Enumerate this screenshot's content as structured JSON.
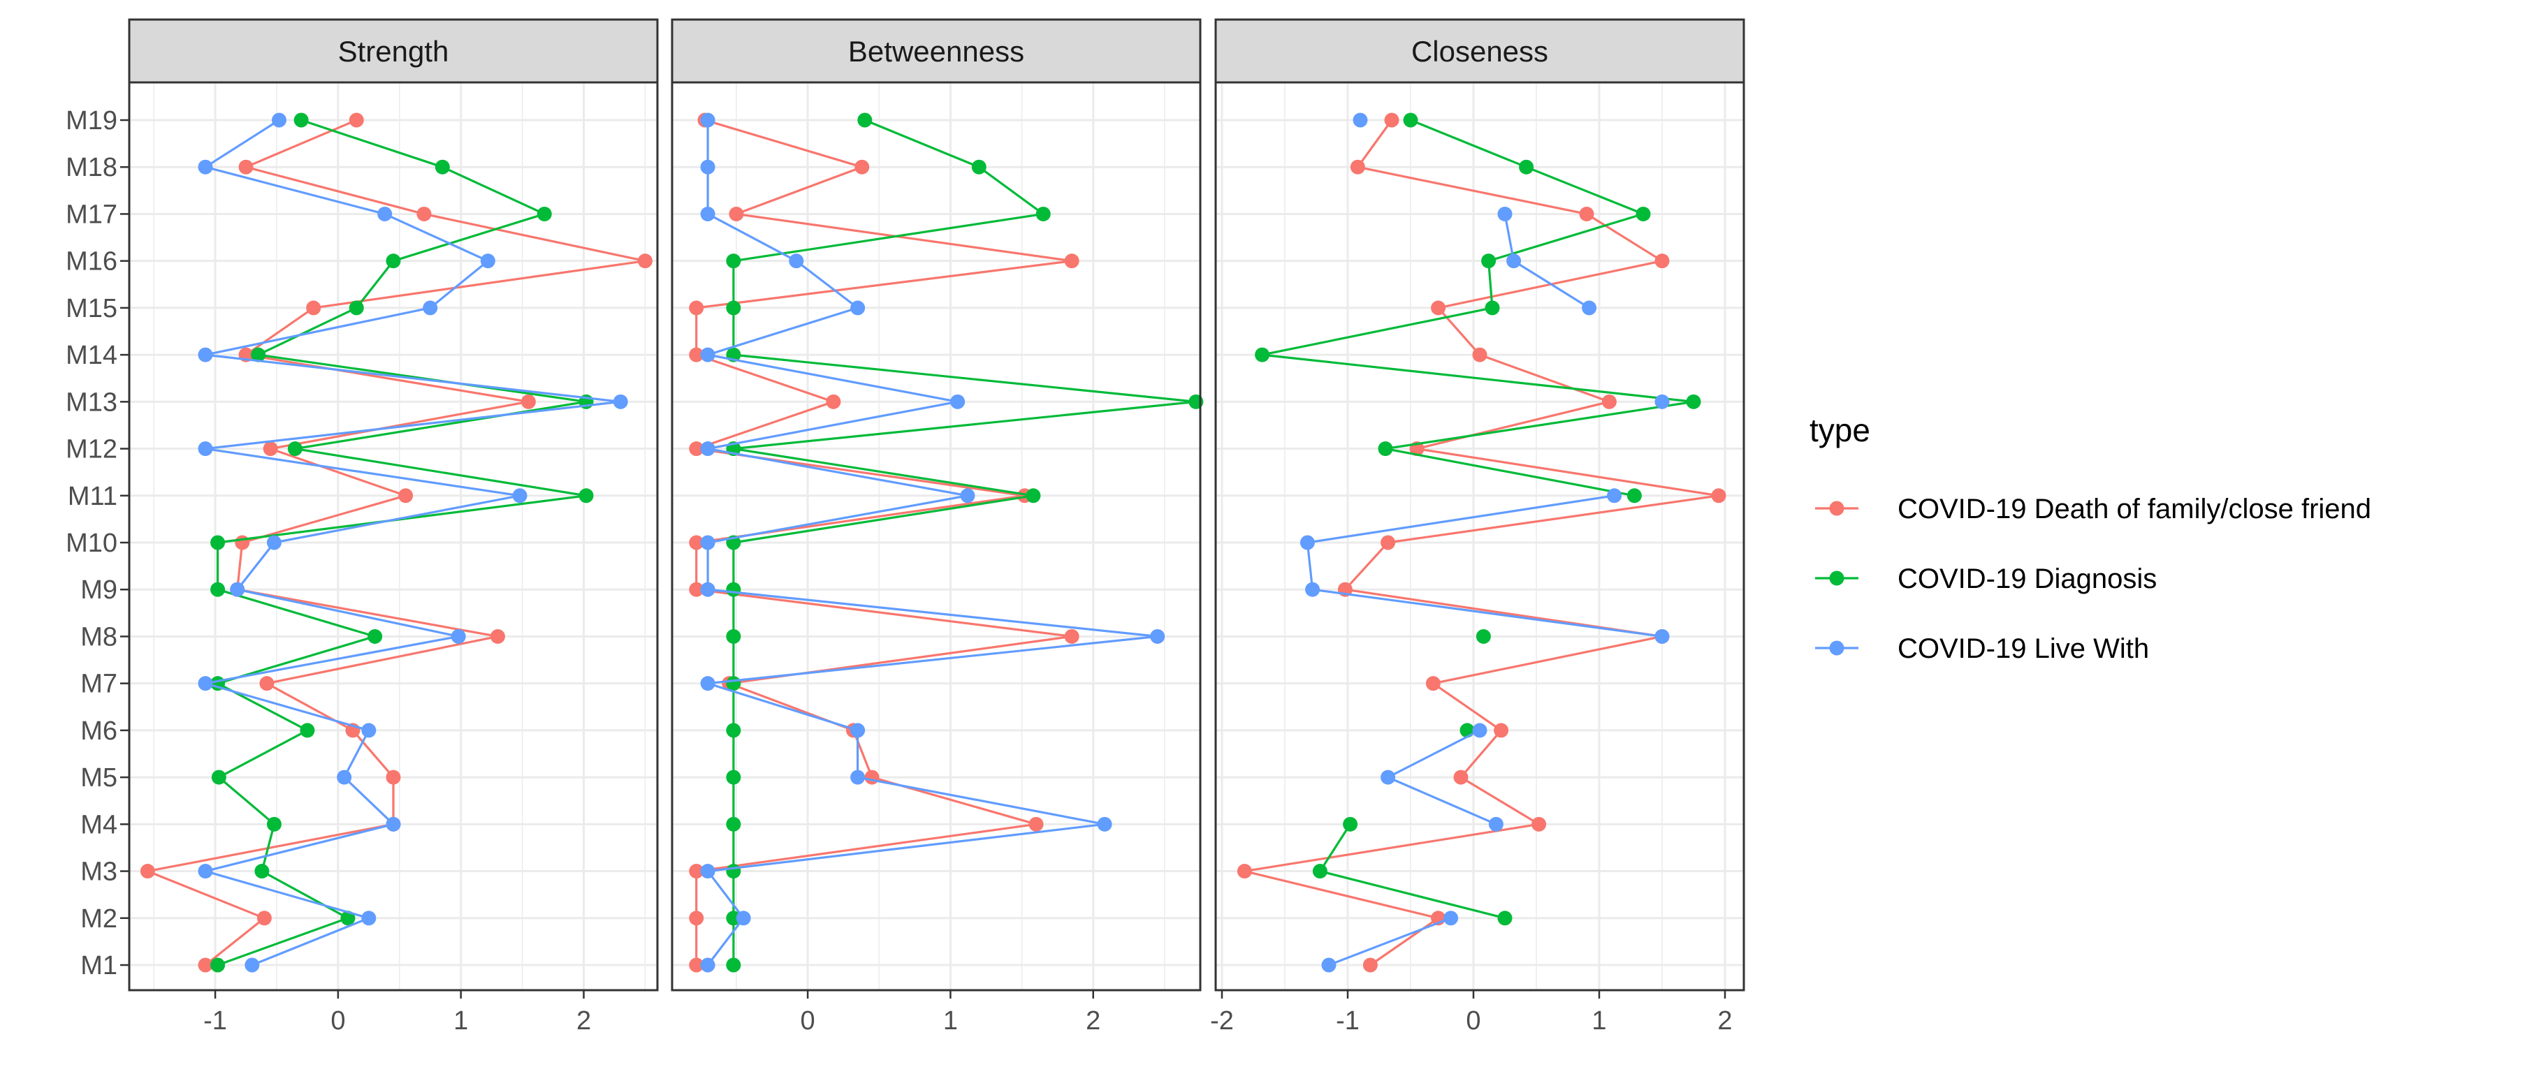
{
  "chart_data": {
    "type": "line",
    "orientation": "horizontal-profile",
    "categories": [
      "M1",
      "M2",
      "M3",
      "M4",
      "M5",
      "M6",
      "M7",
      "M8",
      "M9",
      "M10",
      "M11",
      "M12",
      "M13",
      "M14",
      "M15",
      "M16",
      "M17",
      "M18",
      "M19"
    ],
    "legend": {
      "title": "type",
      "position": "right",
      "entries": [
        "COVID-19 Death of family/close friend",
        "COVID-19 Diagnosis",
        "COVID-19 Live With"
      ]
    },
    "colors": [
      "#F8766D",
      "#00BA38",
      "#619CFF"
    ],
    "panels": [
      {
        "title": "Strength",
        "xlim": [
          -1.7,
          2.6
        ],
        "xticks": [
          -1,
          0,
          1,
          2
        ],
        "xtick_labels": [
          "-1",
          "0",
          "1",
          "2"
        ],
        "series": [
          {
            "name": "COVID-19 Death of family/close friend",
            "values": [
              -1.08,
              -0.6,
              -1.55,
              0.45,
              0.45,
              0.12,
              -0.58,
              1.3,
              -0.82,
              -0.78,
              0.55,
              -0.55,
              1.55,
              -0.75,
              -0.2,
              2.5,
              0.7,
              -0.75,
              0.15
            ]
          },
          {
            "name": "COVID-19 Diagnosis",
            "values": [
              -0.98,
              0.08,
              -0.62,
              -0.52,
              -0.97,
              -0.25,
              -0.98,
              0.3,
              -0.98,
              -0.98,
              2.02,
              -0.35,
              2.02,
              -0.65,
              0.15,
              0.45,
              1.68,
              0.85,
              -0.3
            ]
          },
          {
            "name": "COVID-19 Live With",
            "values": [
              -0.7,
              0.25,
              -1.08,
              0.45,
              0.05,
              0.25,
              -1.08,
              0.98,
              -0.82,
              -0.52,
              1.48,
              -1.08,
              2.3,
              -1.08,
              0.75,
              1.22,
              0.38,
              -1.08,
              -0.48
            ]
          }
        ]
      },
      {
        "title": "Betweenness",
        "xlim": [
          -0.95,
          2.75
        ],
        "xticks": [
          0,
          1,
          2
        ],
        "xtick_labels": [
          "0",
          "1",
          "2"
        ],
        "series": [
          {
            "name": "COVID-19 Death of family/close friend",
            "values": [
              -0.78,
              -0.78,
              -0.78,
              1.6,
              0.45,
              0.32,
              -0.55,
              1.85,
              -0.78,
              -0.78,
              1.52,
              -0.78,
              0.18,
              -0.78,
              -0.78,
              1.85,
              -0.5,
              0.38,
              -0.72
            ]
          },
          {
            "name": "COVID-19 Diagnosis",
            "values": [
              -0.52,
              -0.52,
              -0.52,
              -0.52,
              -0.52,
              -0.52,
              -0.52,
              -0.52,
              -0.52,
              -0.52,
              1.58,
              -0.52,
              2.72,
              -0.52,
              -0.52,
              -0.52,
              1.65,
              1.2,
              0.4
            ]
          },
          {
            "name": "COVID-19 Live With",
            "values": [
              -0.7,
              -0.45,
              -0.7,
              2.08,
              0.35,
              0.35,
              -0.7,
              2.45,
              -0.7,
              -0.7,
              1.12,
              -0.7,
              1.05,
              -0.7,
              0.35,
              -0.08,
              -0.7,
              -0.7,
              -0.7
            ]
          }
        ]
      },
      {
        "title": "Closeness",
        "xlim": [
          -2.05,
          2.15
        ],
        "xticks": [
          -2,
          -1,
          0,
          1,
          2
        ],
        "xtick_labels": [
          "-2",
          "-1",
          "0",
          "1",
          "2"
        ],
        "series": [
          {
            "name": "COVID-19 Death of family/close friend",
            "values": [
              -0.82,
              -0.28,
              -1.82,
              0.52,
              -0.1,
              0.22,
              -0.32,
              1.5,
              -1.02,
              -0.68,
              1.95,
              -0.45,
              1.08,
              0.05,
              -0.28,
              1.5,
              0.9,
              -0.92,
              -0.65
            ]
          },
          {
            "name": "COVID-19 Diagnosis",
            "values": [
              null,
              0.25,
              -1.22,
              -0.98,
              null,
              -0.05,
              null,
              0.08,
              null,
              null,
              1.28,
              -0.7,
              1.75,
              -1.68,
              0.15,
              0.12,
              1.35,
              0.42,
              -0.5
            ]
          },
          {
            "name": "COVID-19 Live With",
            "values": [
              -1.15,
              -0.18,
              null,
              0.18,
              -0.68,
              0.05,
              null,
              1.5,
              -1.28,
              -1.32,
              1.12,
              null,
              1.5,
              null,
              0.92,
              0.32,
              0.25,
              null,
              -0.9
            ]
          }
        ]
      }
    ]
  }
}
